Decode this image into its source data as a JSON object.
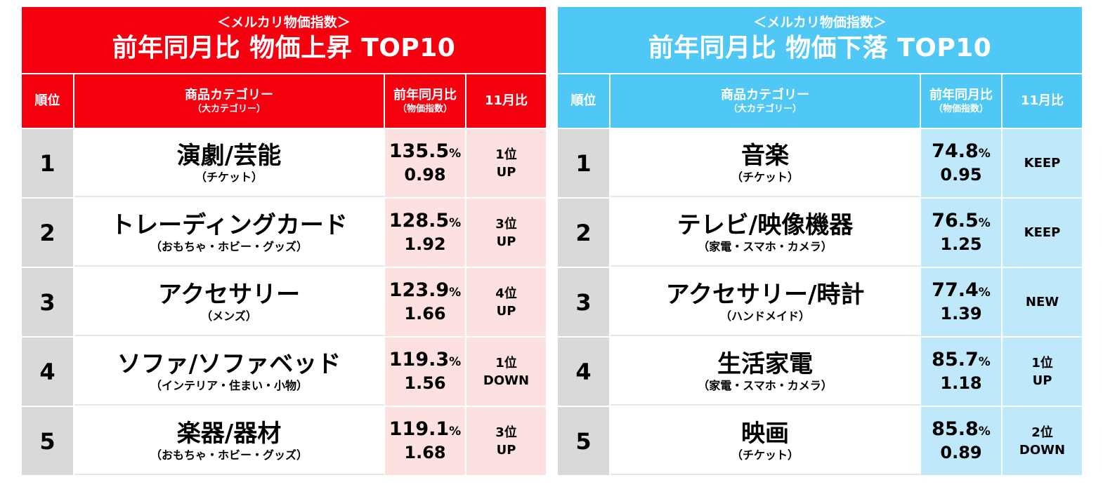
{
  "headers": {
    "rank": "順位",
    "category": "商品カテゴリー",
    "category_sub": "（大カテゴリー）",
    "yoy": "前年同月比",
    "yoy_sub": "（物価指数）",
    "mom": "11月比"
  },
  "up": {
    "subtitle": "＜メルカリ物価指数＞",
    "title": "前年同月比 物価上昇 TOP10",
    "rows": [
      {
        "rank": "1",
        "name": "演劇/芸能",
        "sub": "（チケット）",
        "pct": "135.5",
        "unit": "%",
        "idx": "0.98",
        "c1": "1位",
        "c2": "UP"
      },
      {
        "rank": "2",
        "name": "トレーディングカード",
        "sub": "（おもちゃ・ホビー・グッズ）",
        "pct": "128.5",
        "unit": "%",
        "idx": "1.92",
        "c1": "3位",
        "c2": "UP"
      },
      {
        "rank": "3",
        "name": "アクセサリー",
        "sub": "（メンズ）",
        "pct": "123.9",
        "unit": "%",
        "idx": "1.66",
        "c1": "4位",
        "c2": "UP"
      },
      {
        "rank": "4",
        "name": "ソファ/ソファベッド",
        "sub": "（インテリア・住まい・小物）",
        "pct": "119.3",
        "unit": "%",
        "idx": "1.56",
        "c1": "1位",
        "c2": "DOWN"
      },
      {
        "rank": "5",
        "name": "楽器/器材",
        "sub": "（おもちゃ・ホビー・グッズ）",
        "pct": "119.1",
        "unit": "%",
        "idx": "1.68",
        "c1": "3位",
        "c2": "UP"
      }
    ]
  },
  "down": {
    "subtitle": "＜メルカリ物価指数＞",
    "title": "前年同月比 物価下落 TOP10",
    "rows": [
      {
        "rank": "1",
        "name": "音楽",
        "sub": "（チケット）",
        "pct": "74.8",
        "unit": "%",
        "idx": "0.95",
        "c1": "KEEP",
        "c2": ""
      },
      {
        "rank": "2",
        "name": "テレビ/映像機器",
        "sub": "（家電・スマホ・カメラ）",
        "pct": "76.5",
        "unit": "%",
        "idx": "1.25",
        "c1": "KEEP",
        "c2": ""
      },
      {
        "rank": "3",
        "name": "アクセサリー/時計",
        "sub": "（ハンドメイド）",
        "pct": "77.4",
        "unit": "%",
        "idx": "1.39",
        "c1": "NEW",
        "c2": ""
      },
      {
        "rank": "4",
        "name": "生活家電",
        "sub": "（家電・スマホ・カメラ）",
        "pct": "85.7",
        "unit": "%",
        "idx": "1.18",
        "c1": "1位",
        "c2": "UP"
      },
      {
        "rank": "5",
        "name": "映画",
        "sub": "（チケット）",
        "pct": "85.8",
        "unit": "%",
        "idx": "0.89",
        "c1": "2位",
        "c2": "DOWN"
      }
    ]
  }
}
